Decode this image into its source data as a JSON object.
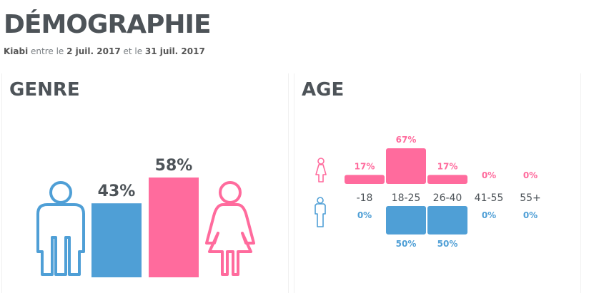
{
  "header": {
    "title": "DÉMOGRAPHIE",
    "subtitle": {
      "brand": "Kiabi",
      "text1": " entre le ",
      "date_start": "2 juil. 2017",
      "text2": " et le ",
      "date_end": "31 juil. 2017"
    }
  },
  "colors": {
    "male": "#4f9fd6",
    "female": "#ff6b9d"
  },
  "genre_panel": {
    "title": "GENRE"
  },
  "age_panel": {
    "title": "AGE"
  },
  "chart_data": [
    {
      "type": "bar",
      "title": "GENRE",
      "categories": [
        "Homme",
        "Femme"
      ],
      "values": [
        43,
        58
      ],
      "labels": [
        "43%",
        "58%"
      ],
      "icons": [
        "male-figure-icon",
        "female-figure-icon"
      ]
    },
    {
      "type": "bar",
      "title": "AGE",
      "categories": [
        "-18",
        "18-25",
        "26-40",
        "41-55",
        "55+"
      ],
      "series": [
        {
          "values": [
            17,
            67,
            17,
            0,
            0
          ],
          "labels": [
            "17%",
            "67%",
            "17%",
            "0%",
            "0%"
          ]
        },
        {
          "values": [
            0,
            50,
            50,
            0,
            0
          ],
          "labels": [
            "0%",
            "50%",
            "50%",
            "0%",
            "0%"
          ]
        }
      ]
    }
  ]
}
